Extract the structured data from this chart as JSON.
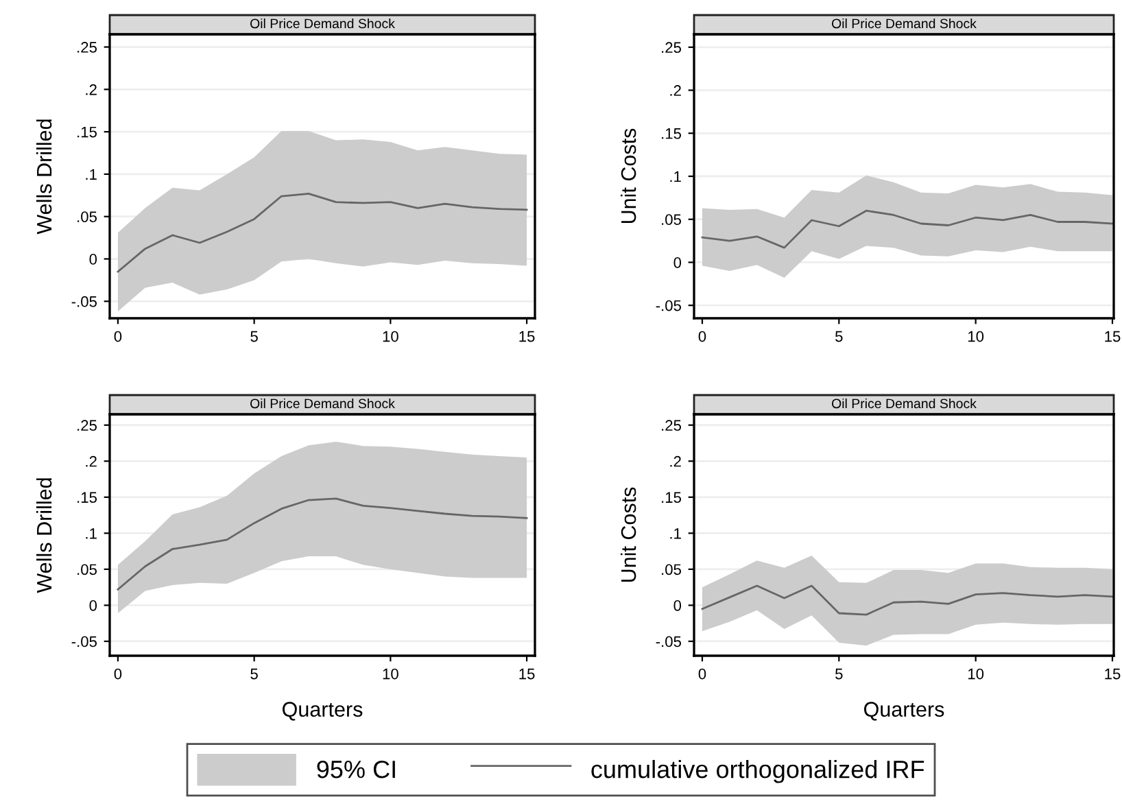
{
  "chart_data": [
    {
      "type": "line",
      "title": "Oil Price Demand Shock",
      "ylabel": "Wells Drilled",
      "x": [
        0,
        1,
        2,
        3,
        4,
        5,
        6,
        7,
        8,
        9,
        10,
        11,
        12,
        13,
        14,
        15
      ],
      "xlim": [
        -0.3,
        15.3
      ],
      "xticks": [
        0,
        5,
        10,
        15
      ],
      "ylim": [
        -0.07,
        0.265
      ],
      "yticks": [
        {
          "value": -0.05,
          "label": "-.05"
        },
        0,
        {
          "value": 0.05,
          "label": ".05"
        },
        {
          "value": 0.1,
          "label": ".1"
        },
        {
          "value": 0.15,
          "label": ".15"
        },
        {
          "value": 0.2,
          "label": ".2"
        },
        {
          "value": 0.25,
          "label": ".25"
        }
      ],
      "grid": "y",
      "series": [
        {
          "color": "#666666",
          "values": [
            -0.015,
            0.012,
            0.028,
            0.019,
            0.032,
            0.047,
            0.074,
            0.077,
            0.067,
            0.066,
            0.067,
            0.06,
            0.065,
            0.061,
            0.059,
            0.058
          ],
          "lower": [
            -0.062,
            -0.034,
            -0.028,
            -0.042,
            -0.036,
            -0.025,
            -0.003,
            0.0,
            -0.005,
            -0.009,
            -0.004,
            -0.007,
            -0.002,
            -0.005,
            -0.006,
            -0.008
          ],
          "upper": [
            0.031,
            0.06,
            0.084,
            0.081,
            0.1,
            0.12,
            0.151,
            0.151,
            0.14,
            0.141,
            0.138,
            0.128,
            0.132,
            0.128,
            0.124,
            0.123
          ]
        }
      ]
    },
    {
      "type": "line",
      "title": "Oil Price Demand Shock",
      "ylabel": "Unit Costs",
      "x": [
        0,
        1,
        2,
        3,
        4,
        5,
        6,
        7,
        8,
        9,
        10,
        11,
        12,
        13,
        14,
        15
      ],
      "xlim": [
        -0.3,
        15.05
      ],
      "xticks": [
        0,
        5,
        10,
        15
      ],
      "ylim": [
        -0.065,
        0.265
      ],
      "yticks": [
        {
          "value": -0.05,
          "label": "-.05"
        },
        0,
        {
          "value": 0.05,
          "label": ".05"
        },
        {
          "value": 0.1,
          "label": ".1"
        },
        {
          "value": 0.15,
          "label": ".15"
        },
        {
          "value": 0.2,
          "label": ".2"
        },
        {
          "value": 0.25,
          "label": ".25"
        }
      ],
      "grid": "y",
      "series": [
        {
          "color": "#666666",
          "values": [
            0.029,
            0.025,
            0.03,
            0.017,
            0.049,
            0.042,
            0.06,
            0.055,
            0.045,
            0.043,
            0.052,
            0.049,
            0.055,
            0.047,
            0.047,
            0.045
          ],
          "lower": [
            -0.004,
            -0.01,
            -0.003,
            -0.018,
            0.013,
            0.004,
            0.019,
            0.017,
            0.008,
            0.007,
            0.014,
            0.012,
            0.018,
            0.013,
            0.013,
            0.013
          ],
          "upper": [
            0.063,
            0.061,
            0.062,
            0.052,
            0.084,
            0.081,
            0.101,
            0.093,
            0.081,
            0.08,
            0.09,
            0.087,
            0.091,
            0.082,
            0.081,
            0.078
          ]
        }
      ]
    },
    {
      "type": "line",
      "title": "Oil Price Demand Shock",
      "ylabel": "Wells Drilled",
      "xlabel": "Quarters",
      "x": [
        0,
        1,
        2,
        3,
        4,
        5,
        6,
        7,
        8,
        9,
        10,
        11,
        12,
        13,
        14,
        15
      ],
      "xlim": [
        -0.3,
        15.3
      ],
      "xticks": [
        0,
        5,
        10,
        15
      ],
      "ylim": [
        -0.07,
        0.265
      ],
      "yticks": [
        {
          "value": -0.05,
          "label": "-.05"
        },
        0,
        {
          "value": 0.05,
          "label": ".05"
        },
        {
          "value": 0.1,
          "label": ".1"
        },
        {
          "value": 0.15,
          "label": ".15"
        },
        {
          "value": 0.2,
          "label": ".2"
        },
        {
          "value": 0.25,
          "label": ".25"
        }
      ],
      "grid": "y",
      "series": [
        {
          "color": "#666666",
          "values": [
            0.022,
            0.054,
            0.078,
            0.084,
            0.091,
            0.114,
            0.134,
            0.146,
            0.148,
            0.138,
            0.135,
            0.131,
            0.127,
            0.124,
            0.123,
            0.121
          ],
          "lower": [
            -0.011,
            0.02,
            0.028,
            0.031,
            0.03,
            0.045,
            0.061,
            0.068,
            0.068,
            0.056,
            0.05,
            0.045,
            0.04,
            0.038,
            0.038,
            0.038
          ],
          "upper": [
            0.056,
            0.089,
            0.126,
            0.136,
            0.152,
            0.183,
            0.207,
            0.222,
            0.227,
            0.221,
            0.22,
            0.217,
            0.213,
            0.209,
            0.207,
            0.205
          ]
        }
      ]
    },
    {
      "type": "line",
      "title": "Oil Price Demand Shock",
      "ylabel": "Unit Costs",
      "xlabel": "Quarters",
      "x": [
        0,
        1,
        2,
        3,
        4,
        5,
        6,
        7,
        8,
        9,
        10,
        11,
        12,
        13,
        14,
        15
      ],
      "xlim": [
        -0.3,
        15.05
      ],
      "xticks": [
        0,
        5,
        10,
        15
      ],
      "ylim": [
        -0.07,
        0.265
      ],
      "yticks": [
        {
          "value": -0.05,
          "label": "-.05"
        },
        0,
        {
          "value": 0.05,
          "label": ".05"
        },
        {
          "value": 0.1,
          "label": ".1"
        },
        {
          "value": 0.15,
          "label": ".15"
        },
        {
          "value": 0.2,
          "label": ".2"
        },
        {
          "value": 0.25,
          "label": ".25"
        }
      ],
      "grid": "y",
      "legend": "bottom",
      "annotations": [
        "95% CI"
      ],
      "series": [
        {
          "name": "cumulative orthogonalized IRF",
          "color": "#666666",
          "values": [
            -0.005,
            0.011,
            0.027,
            0.01,
            0.027,
            -0.011,
            -0.013,
            0.004,
            0.005,
            0.002,
            0.015,
            0.017,
            0.014,
            0.012,
            0.014,
            0.012
          ],
          "lower": [
            -0.036,
            -0.023,
            -0.007,
            -0.033,
            -0.014,
            -0.052,
            -0.056,
            -0.041,
            -0.04,
            -0.04,
            -0.027,
            -0.024,
            -0.026,
            -0.027,
            -0.026,
            -0.026
          ],
          "upper": [
            0.025,
            0.043,
            0.062,
            0.052,
            0.069,
            0.032,
            0.031,
            0.049,
            0.049,
            0.045,
            0.058,
            0.058,
            0.053,
            0.052,
            0.052,
            0.05
          ]
        }
      ]
    }
  ]
}
